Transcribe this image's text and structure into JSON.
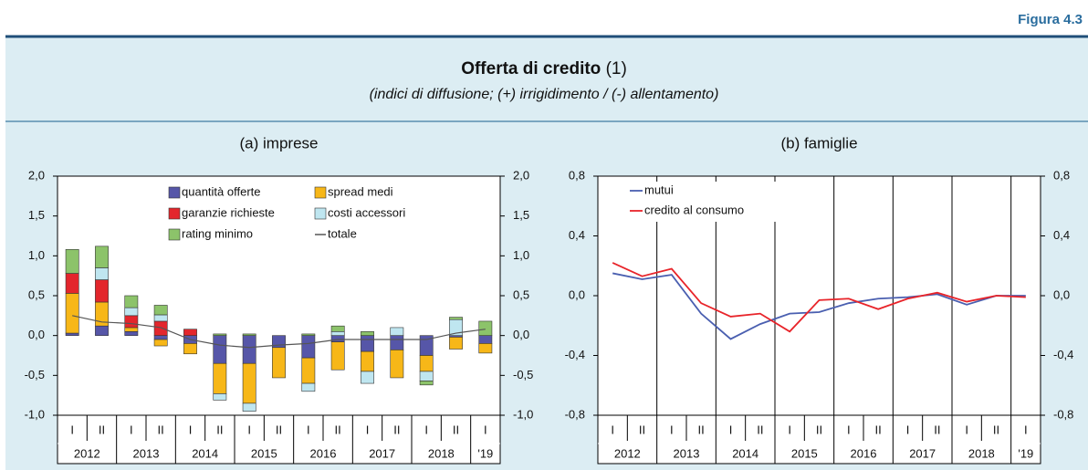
{
  "header": {
    "figure": "Figura 4.3",
    "title": "Offerta di credito",
    "title_note": "(1)",
    "subtitle": "(indici di diffusione; (+) irrigidimento / (-) allentamento)"
  },
  "chart_data": [
    {
      "type": "bar",
      "stacked": true,
      "title": "(a) imprese",
      "categories": [
        "I",
        "II",
        "I",
        "II",
        "I",
        "II",
        "I",
        "II",
        "I",
        "II",
        "I",
        "II",
        "I",
        "II",
        "I"
      ],
      "years": [
        "2012",
        "2013",
        "2014",
        "2015",
        "2016",
        "2017",
        "2018",
        "'19"
      ],
      "ylim": [
        -1,
        2
      ],
      "yticks": [
        {
          "value": -1,
          "label": "-1,0"
        },
        {
          "value": -0.5,
          "label": "-0,5"
        },
        {
          "value": 0,
          "label": "0,0"
        },
        {
          "value": 0.5,
          "label": "0,5"
        },
        {
          "value": 1,
          "label": "1,0"
        },
        {
          "value": 1.5,
          "label": "1,5"
        },
        {
          "value": 2,
          "label": "2,0"
        }
      ],
      "vgrid": false,
      "series": [
        {
          "name": "quantità offerte",
          "color": "#5656a8",
          "values": [
            0.03,
            0.12,
            0.05,
            -0.05,
            -0.1,
            -0.35,
            -0.35,
            -0.15,
            -0.28,
            -0.08,
            -0.2,
            -0.18,
            -0.25,
            -0.02,
            -0.1
          ]
        },
        {
          "name": "spread medi",
          "color": "#f7b718",
          "values": [
            0.5,
            0.3,
            0.05,
            -0.08,
            -0.13,
            -0.38,
            -0.5,
            -0.38,
            -0.32,
            -0.35,
            -0.25,
            -0.35,
            -0.2,
            -0.15,
            -0.12
          ]
        },
        {
          "name": "garanzie richieste",
          "color": "#e3262c",
          "values": [
            0.25,
            0.28,
            0.15,
            0.18,
            0.08,
            0.0,
            0.0,
            0.0,
            0.0,
            0.0,
            0.0,
            0.0,
            0.0,
            0.0,
            0.0
          ]
        },
        {
          "name": "costi accessori",
          "color": "#bfe6f0",
          "values": [
            0.0,
            0.15,
            0.1,
            0.08,
            0.0,
            -0.08,
            -0.1,
            0.0,
            -0.1,
            0.05,
            -0.15,
            0.1,
            -0.12,
            0.2,
            0.0
          ]
        },
        {
          "name": "rating minimo",
          "color": "#8cc36a",
          "values": [
            0.3,
            0.27,
            0.15,
            0.12,
            0.0,
            0.02,
            0.02,
            0.0,
            0.02,
            0.07,
            0.05,
            0.0,
            -0.05,
            0.03,
            0.18
          ]
        },
        {
          "name": "totale",
          "type": "line",
          "color": "#555555",
          "values": [
            0.25,
            0.17,
            0.15,
            0.1,
            -0.05,
            -0.12,
            -0.15,
            -0.12,
            -0.1,
            -0.05,
            -0.05,
            -0.05,
            -0.05,
            0.03,
            0.08
          ]
        }
      ]
    },
    {
      "type": "line",
      "title": "(b) famiglie",
      "categories": [
        "I",
        "II",
        "I",
        "II",
        "I",
        "II",
        "I",
        "II",
        "I",
        "II",
        "I",
        "II",
        "I",
        "II",
        "I"
      ],
      "years": [
        "2012",
        "2013",
        "2014",
        "2015",
        "2016",
        "2017",
        "2018",
        "'19"
      ],
      "ylim": [
        -0.8,
        0.8
      ],
      "yticks": [
        {
          "value": -0.8,
          "label": "-0,8"
        },
        {
          "value": -0.4,
          "label": "-0,4"
        },
        {
          "value": 0,
          "label": "0,0"
        },
        {
          "value": 0.4,
          "label": "0,4"
        },
        {
          "value": 0.8,
          "label": "0,8"
        }
      ],
      "vgrid": true,
      "series": [
        {
          "name": "mutui",
          "color": "#4a5fb0",
          "values": [
            0.15,
            0.11,
            0.14,
            -0.12,
            -0.29,
            -0.19,
            -0.12,
            -0.11,
            -0.05,
            -0.02,
            -0.01,
            0.01,
            -0.06,
            0.0,
            0.0
          ]
        },
        {
          "name": "credito al consumo",
          "color": "#e8242a",
          "values": [
            0.22,
            0.13,
            0.18,
            -0.05,
            -0.14,
            -0.12,
            -0.24,
            -0.03,
            -0.02,
            -0.09,
            -0.02,
            0.02,
            -0.04,
            0.0,
            -0.01
          ]
        }
      ]
    }
  ]
}
